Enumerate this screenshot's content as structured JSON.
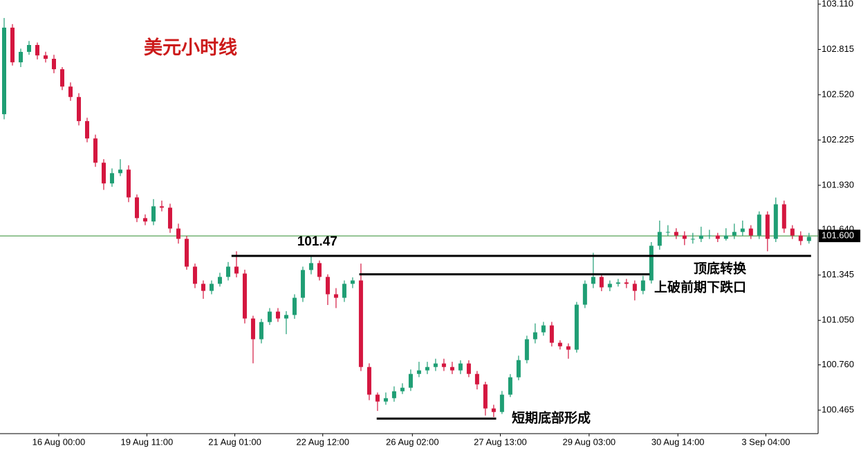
{
  "chart_data": {
    "type": "candlestick",
    "title": "美元小时线",
    "annotations": [
      "顶底转换",
      "上破前期下跌口",
      "短期底部形成"
    ],
    "up_color": "#1f9e74",
    "down_color": "#d4163f",
    "open": [
      102.393,
      102.957,
      102.731,
      102.799,
      102.844,
      102.776,
      102.754,
      102.686,
      102.573,
      102.505,
      102.348,
      102.235,
      102.077,
      101.942,
      102.009,
      102.032,
      101.851,
      101.716,
      101.694,
      101.793,
      101.784,
      101.648,
      101.581,
      101.4,
      101.288,
      101.242,
      101.288,
      101.333,
      101.4,
      101.355,
      101.062,
      100.927,
      101.039,
      101.107,
      101.062,
      101.085,
      101.197,
      101.378,
      101.423,
      101.333,
      101.22,
      101.197,
      101.288,
      101.31,
      100.746,
      100.566,
      100.521,
      100.543,
      100.588,
      100.611,
      100.701,
      100.724,
      100.746,
      100.769,
      100.746,
      100.724,
      100.769,
      100.701,
      100.633,
      100.476,
      100.453,
      100.566,
      100.679,
      100.791,
      100.927,
      100.972,
      101.017,
      100.904,
      100.881,
      100.859,
      101.152,
      101.288,
      101.333,
      101.265,
      101.288,
      101.297,
      101.288,
      101.242,
      101.31,
      101.536,
      101.626,
      101.626,
      101.603,
      101.581,
      101.581,
      101.603,
      101.603,
      101.581,
      101.603,
      101.626,
      101.648,
      101.603,
      101.739,
      101.581,
      101.806,
      101.648,
      101.603,
      101.567
    ],
    "high": [
      103.02,
      102.98,
      102.82,
      102.87,
      102.86,
      102.8,
      102.78,
      102.7,
      102.6,
      102.53,
      102.37,
      102.26,
      102.1,
      102.04,
      102.1,
      102.06,
      101.87,
      101.74,
      101.84,
      101.83,
      101.81,
      101.68,
      101.6,
      101.42,
      101.31,
      101.31,
      101.36,
      101.43,
      101.5,
      101.38,
      101.08,
      101.06,
      101.13,
      101.13,
      101.11,
      101.22,
      101.4,
      101.47,
      101.44,
      101.35,
      101.26,
      101.31,
      101.33,
      101.42,
      100.77,
      100.58,
      100.58,
      100.62,
      100.64,
      100.73,
      100.78,
      100.78,
      100.8,
      100.8,
      100.78,
      100.79,
      100.79,
      100.72,
      100.65,
      100.5,
      100.59,
      100.7,
      100.82,
      100.95,
      101.03,
      101.04,
      101.04,
      100.92,
      100.9,
      101.17,
      101.31,
      101.49,
      101.35,
      101.31,
      101.32,
      101.32,
      101.31,
      101.34,
      101.56,
      101.7,
      101.67,
      101.65,
      101.63,
      101.62,
      101.66,
      101.64,
      101.62,
      101.65,
      101.68,
      101.7,
      101.67,
      101.76,
      101.76,
      101.85,
      101.83,
      101.67,
      101.63,
      101.62
    ],
    "low": [
      102.36,
      102.71,
      102.7,
      102.78,
      102.75,
      102.73,
      102.66,
      102.55,
      102.48,
      102.32,
      102.21,
      102.05,
      101.9,
      101.92,
      101.99,
      101.82,
      101.69,
      101.67,
      101.67,
      101.76,
      101.62,
      101.55,
      101.38,
      101.26,
      101.19,
      101.22,
      101.27,
      101.31,
      101.33,
      101.03,
      100.77,
      100.9,
      101.02,
      101.04,
      100.96,
      101.06,
      101.17,
      101.35,
      101.31,
      101.15,
      101.13,
      101.17,
      101.26,
      100.72,
      100.53,
      100.46,
      100.5,
      100.52,
      100.57,
      100.59,
      100.68,
      100.7,
      100.72,
      100.72,
      100.7,
      100.7,
      100.68,
      100.6,
      100.43,
      100.42,
      100.44,
      100.55,
      100.66,
      100.77,
      100.9,
      100.95,
      100.88,
      100.86,
      100.8,
      100.84,
      101.13,
      101.26,
      101.24,
      101.24,
      101.27,
      101.26,
      101.18,
      101.22,
      101.29,
      101.51,
      101.6,
      101.58,
      101.54,
      101.55,
      101.56,
      101.58,
      101.56,
      101.57,
      101.58,
      101.6,
      101.58,
      101.58,
      101.5,
      101.56,
      101.62,
      101.58,
      101.54,
      101.55
    ],
    "close": [
      102.957,
      102.731,
      102.799,
      102.844,
      102.776,
      102.754,
      102.686,
      102.573,
      102.505,
      102.348,
      102.235,
      102.077,
      101.942,
      102.009,
      102.032,
      101.851,
      101.716,
      101.694,
      101.793,
      101.784,
      101.648,
      101.581,
      101.4,
      101.288,
      101.242,
      101.288,
      101.333,
      101.4,
      101.355,
      101.062,
      100.927,
      101.039,
      101.107,
      101.062,
      101.085,
      101.197,
      101.378,
      101.423,
      101.333,
      101.22,
      101.197,
      101.288,
      101.31,
      100.746,
      100.566,
      100.521,
      100.543,
      100.588,
      100.611,
      100.701,
      100.724,
      100.746,
      100.769,
      100.746,
      100.724,
      100.769,
      100.701,
      100.633,
      100.476,
      100.453,
      100.566,
      100.679,
      100.791,
      100.927,
      100.972,
      101.017,
      100.904,
      100.881,
      100.859,
      101.152,
      101.288,
      101.333,
      101.265,
      101.288,
      101.297,
      101.288,
      101.242,
      101.31,
      101.536,
      101.626,
      101.626,
      101.603,
      101.581,
      101.581,
      101.603,
      101.603,
      101.581,
      101.603,
      101.626,
      101.648,
      101.603,
      101.739,
      101.581,
      101.806,
      101.648,
      101.603,
      101.567,
      101.594
    ],
    "xlim": [
      0,
      98.6
    ],
    "xticks": [
      {
        "value": 7.08,
        "label": "16 Aug 00:00"
      },
      {
        "value": 17.7,
        "label": "19 Aug 11:00"
      },
      {
        "value": 28.3,
        "label": "21 Aug 01:00"
      },
      {
        "value": 38.9,
        "label": "22 Aug 12:00"
      },
      {
        "value": 49.7,
        "label": "26 Aug 02:00"
      },
      {
        "value": 60.3,
        "label": "27 Aug 13:00"
      },
      {
        "value": 71.0,
        "label": "29 Aug 03:00"
      },
      {
        "value": 81.7,
        "label": "30 Aug 14:00"
      },
      {
        "value": 92.3,
        "label": "3 Sep 04:00"
      }
    ],
    "ylim": [
      100.312,
      103.137
    ],
    "yticks": [
      {
        "value": 100.465,
        "label": "100.465"
      },
      {
        "value": 100.76,
        "label": "100.760"
      },
      {
        "value": 101.05,
        "label": "101.050"
      },
      {
        "value": 101.345,
        "label": "101.345"
      },
      {
        "value": 101.64,
        "label": "101.640"
      },
      {
        "value": 101.93,
        "label": "101.930"
      },
      {
        "value": 102.225,
        "label": "102.225"
      },
      {
        "value": 102.52,
        "label": "102.520"
      },
      {
        "value": 102.815,
        "label": "102.815"
      },
      {
        "value": 103.11,
        "label": "103.110"
      }
    ],
    "levels": [
      {
        "value": 101.47,
        "label": "101.47",
        "x_range": [
          27.9,
          97.75
        ]
      },
      {
        "value": 101.35,
        "x_range": [
          43.3,
          78.3
        ]
      },
      {
        "value": 100.41,
        "x_range": [
          45.4,
          59.8
        ]
      }
    ],
    "last_price": {
      "value": 101.6,
      "label": "101.600",
      "color": "#2e8b2e"
    }
  }
}
